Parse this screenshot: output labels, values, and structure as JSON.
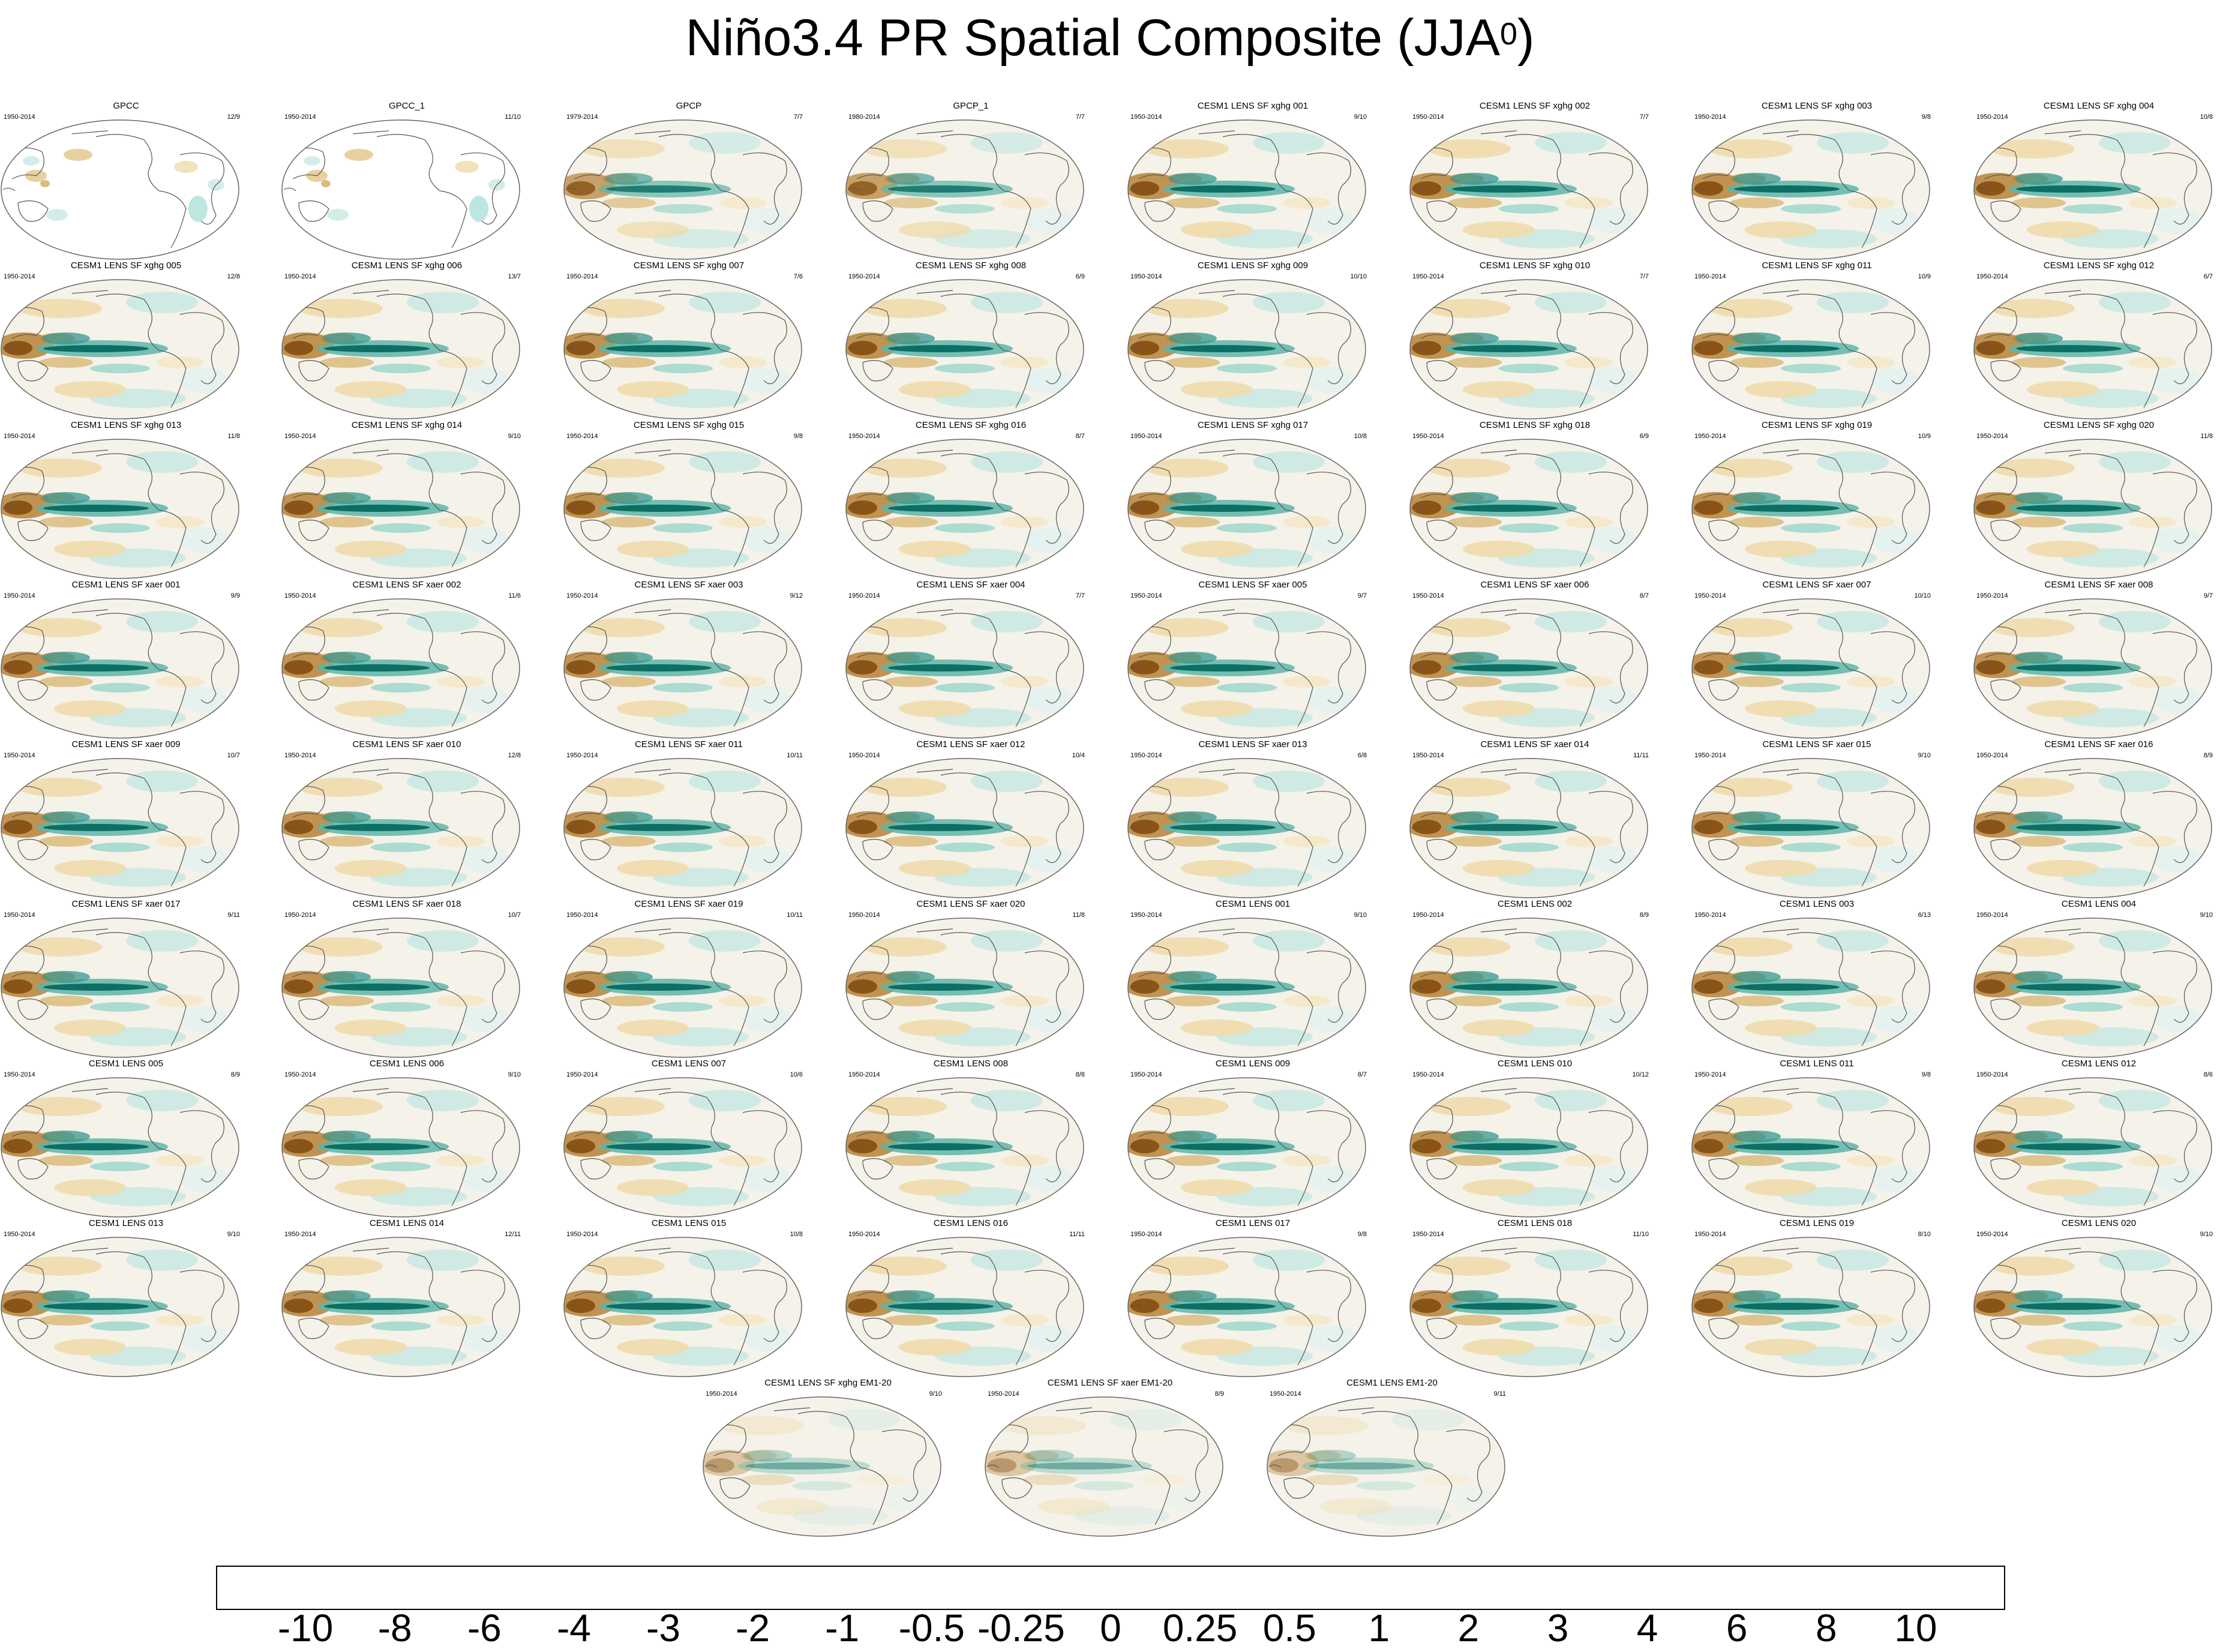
{
  "title_main": "Niño3.4 PR Spatial Composite (JJA",
  "title_sup": "0",
  "title_close": ")",
  "chart_data": {
    "type": "heatmap",
    "title": "Niño3.4 PR Spatial Composite (JJA0)",
    "description_of_values": "ENSO composite precipitation anomaly maps on a Robinson-style global projection, one panel per dataset / ensemble member",
    "panels": [
      {
        "name": "GPCC",
        "years": "1950-2014",
        "count": "12/9",
        "land_only": true
      },
      {
        "name": "GPCC_1",
        "years": "1950-2014",
        "count": "11/10",
        "land_only": true
      },
      {
        "name": "GPCP",
        "years": "1979-2014",
        "count": "7/7",
        "strength": 0.85
      },
      {
        "name": "GPCP_1",
        "years": "1980-2014",
        "count": "7/7",
        "strength": 0.85
      },
      {
        "name": "CESM1 LENS SF xghg 001",
        "years": "1950-2014",
        "count": "9/10"
      },
      {
        "name": "CESM1 LENS SF xghg 002",
        "years": "1950-2014",
        "count": "7/7"
      },
      {
        "name": "CESM1 LENS SF xghg 003",
        "years": "1950-2014",
        "count": "9/8"
      },
      {
        "name": "CESM1 LENS SF xghg 004",
        "years": "1950-2014",
        "count": "10/8"
      },
      {
        "name": "CESM1 LENS SF xghg 005",
        "years": "1950-2014",
        "count": "12/8"
      },
      {
        "name": "CESM1 LENS SF xghg 006",
        "years": "1950-2014",
        "count": "13/7"
      },
      {
        "name": "CESM1 LENS SF xghg 007",
        "years": "1950-2014",
        "count": "7/6"
      },
      {
        "name": "CESM1 LENS SF xghg 008",
        "years": "1950-2014",
        "count": "6/9"
      },
      {
        "name": "CESM1 LENS SF xghg 009",
        "years": "1950-2014",
        "count": "10/10"
      },
      {
        "name": "CESM1 LENS SF xghg 010",
        "years": "1950-2014",
        "count": "7/7"
      },
      {
        "name": "CESM1 LENS SF xghg 011",
        "years": "1950-2014",
        "count": "10/9"
      },
      {
        "name": "CESM1 LENS SF xghg 012",
        "years": "1950-2014",
        "count": "6/7"
      },
      {
        "name": "CESM1 LENS SF xghg 013",
        "years": "1950-2014",
        "count": "11/8"
      },
      {
        "name": "CESM1 LENS SF xghg 014",
        "years": "1950-2014",
        "count": "9/10"
      },
      {
        "name": "CESM1 LENS SF xghg 015",
        "years": "1950-2014",
        "count": "9/8"
      },
      {
        "name": "CESM1 LENS SF xghg 016",
        "years": "1950-2014",
        "count": "8/7"
      },
      {
        "name": "CESM1 LENS SF xghg 017",
        "years": "1950-2014",
        "count": "10/8"
      },
      {
        "name": "CESM1 LENS SF xghg 018",
        "years": "1950-2014",
        "count": "6/9"
      },
      {
        "name": "CESM1 LENS SF xghg 019",
        "years": "1950-2014",
        "count": "10/9"
      },
      {
        "name": "CESM1 LENS SF xghg 020",
        "years": "1950-2014",
        "count": "11/8"
      },
      {
        "name": "CESM1 LENS SF xaer 001",
        "years": "1950-2014",
        "count": "9/9"
      },
      {
        "name": "CESM1 LENS SF xaer 002",
        "years": "1950-2014",
        "count": "11/6"
      },
      {
        "name": "CESM1 LENS SF xaer 003",
        "years": "1950-2014",
        "count": "9/12"
      },
      {
        "name": "CESM1 LENS SF xaer 004",
        "years": "1950-2014",
        "count": "7/7"
      },
      {
        "name": "CESM1 LENS SF xaer 005",
        "years": "1950-2014",
        "count": "9/7"
      },
      {
        "name": "CESM1 LENS SF xaer 006",
        "years": "1950-2014",
        "count": "8/7"
      },
      {
        "name": "CESM1 LENS SF xaer 007",
        "years": "1950-2014",
        "count": "10/10"
      },
      {
        "name": "CESM1 LENS SF xaer 008",
        "years": "1950-2014",
        "count": "9/7"
      },
      {
        "name": "CESM1 LENS SF xaer 009",
        "years": "1950-2014",
        "count": "10/7"
      },
      {
        "name": "CESM1 LENS SF xaer 010",
        "years": "1950-2014",
        "count": "12/8"
      },
      {
        "name": "CESM1 LENS SF xaer 011",
        "years": "1950-2014",
        "count": "10/11"
      },
      {
        "name": "CESM1 LENS SF xaer 012",
        "years": "1950-2014",
        "count": "10/4"
      },
      {
        "name": "CESM1 LENS SF xaer 013",
        "years": "1950-2014",
        "count": "6/8"
      },
      {
        "name": "CESM1 LENS SF xaer 014",
        "years": "1950-2014",
        "count": "11/11"
      },
      {
        "name": "CESM1 LENS SF xaer 015",
        "years": "1950-2014",
        "count": "9/10"
      },
      {
        "name": "CESM1 LENS SF xaer 016",
        "years": "1950-2014",
        "count": "8/9"
      },
      {
        "name": "CESM1 LENS SF xaer 017",
        "years": "1950-2014",
        "count": "9/11"
      },
      {
        "name": "CESM1 LENS SF xaer 018",
        "years": "1950-2014",
        "count": "10/7"
      },
      {
        "name": "CESM1 LENS SF xaer 019",
        "years": "1950-2014",
        "count": "10/11"
      },
      {
        "name": "CESM1 LENS SF xaer 020",
        "years": "1950-2014",
        "count": "11/8"
      },
      {
        "name": "CESM1 LENS 001",
        "years": "1950-2014",
        "count": "9/10"
      },
      {
        "name": "CESM1 LENS 002",
        "years": "1950-2014",
        "count": "8/9"
      },
      {
        "name": "CESM1 LENS 003",
        "years": "1950-2014",
        "count": "6/13"
      },
      {
        "name": "CESM1 LENS 004",
        "years": "1950-2014",
        "count": "9/10"
      },
      {
        "name": "CESM1 LENS 005",
        "years": "1950-2014",
        "count": "8/9"
      },
      {
        "name": "CESM1 LENS 006",
        "years": "1950-2014",
        "count": "9/10"
      },
      {
        "name": "CESM1 LENS 007",
        "years": "1950-2014",
        "count": "10/6"
      },
      {
        "name": "CESM1 LENS 008",
        "years": "1950-2014",
        "count": "8/8"
      },
      {
        "name": "CESM1 LENS 009",
        "years": "1950-2014",
        "count": "8/7"
      },
      {
        "name": "CESM1 LENS 010",
        "years": "1950-2014",
        "count": "10/12"
      },
      {
        "name": "CESM1 LENS 011",
        "years": "1950-2014",
        "count": "9/8"
      },
      {
        "name": "CESM1 LENS 012",
        "years": "1950-2014",
        "count": "8/6"
      },
      {
        "name": "CESM1 LENS 013",
        "years": "1950-2014",
        "count": "9/10"
      },
      {
        "name": "CESM1 LENS 014",
        "years": "1950-2014",
        "count": "12/11"
      },
      {
        "name": "CESM1 LENS 015",
        "years": "1950-2014",
        "count": "10/8"
      },
      {
        "name": "CESM1 LENS 016",
        "years": "1950-2014",
        "count": "11/11"
      },
      {
        "name": "CESM1 LENS 017",
        "years": "1950-2014",
        "count": "9/8"
      },
      {
        "name": "CESM1 LENS 018",
        "years": "1950-2014",
        "count": "11/10"
      },
      {
        "name": "CESM1 LENS 019",
        "years": "1950-2014",
        "count": "8/10"
      },
      {
        "name": "CESM1 LENS 020",
        "years": "1950-2014",
        "count": "9/10"
      },
      {
        "name": "CESM1 LENS SF xghg EM1-20",
        "years": "1950-2014",
        "count": "9/10",
        "strength": 0.45
      },
      {
        "name": "CESM1 LENS SF xaer EM1-20",
        "years": "1950-2014",
        "count": "8/9",
        "strength": 0.45
      },
      {
        "name": "CESM1 LENS EM1-20",
        "years": "1950-2014",
        "count": "9/11",
        "strength": 0.45
      }
    ],
    "colorbar": {
      "levels": [
        "-10",
        "-8",
        "-6",
        "-4",
        "-3",
        "-2",
        "-1",
        "-0.5",
        "-0.25",
        "0",
        "0.25",
        "0.5",
        "1",
        "2",
        "3",
        "4",
        "6",
        "8",
        "10"
      ],
      "colors": [
        "#543005",
        "#7a4508",
        "#8f510b",
        "#ae731f",
        "#c2893a",
        "#d2aa5d",
        "#e2c687",
        "#efdcac",
        "#f4e8c8",
        "#f5f2e9",
        "#e4f2ef",
        "#cbe9e3",
        "#aee0d8",
        "#8cd1c6",
        "#5db5a9",
        "#35978f",
        "#1b7e74",
        "#02655a",
        "#01493d",
        "#003c30"
      ]
    }
  }
}
